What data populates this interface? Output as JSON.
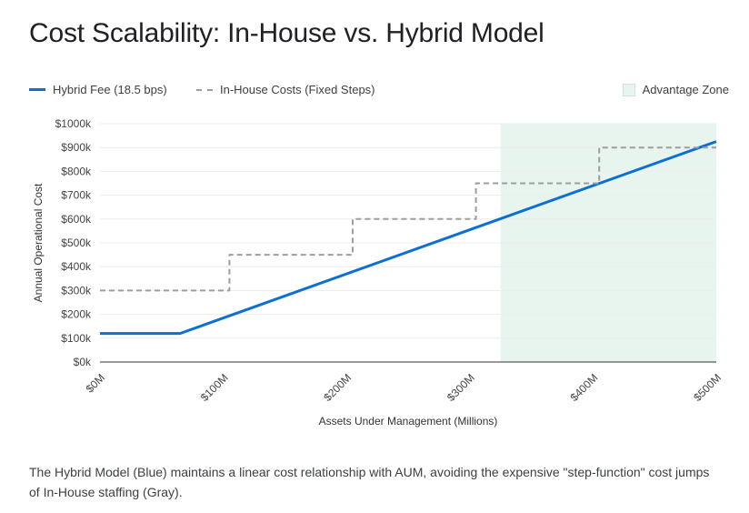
{
  "chart_data": {
    "type": "line",
    "title": "Cost Scalability: In-House vs. Hybrid Model",
    "xlabel": "Assets Under Management (Millions)",
    "ylabel": "Annual Operational Cost",
    "xlim": [
      0,
      500
    ],
    "ylim": [
      0,
      1000
    ],
    "x_ticks": [
      0,
      100,
      200,
      300,
      400,
      500
    ],
    "x_tick_labels": [
      "$0M",
      "$100M",
      "$200M",
      "$300M",
      "$400M",
      "$500M"
    ],
    "y_ticks": [
      0,
      100,
      200,
      300,
      400,
      500,
      600,
      700,
      800,
      900,
      1000
    ],
    "y_tick_labels": [
      "$0k",
      "$100k",
      "$200k",
      "$300k",
      "$400k",
      "$500k",
      "$600k",
      "$700k",
      "$800k",
      "$900k",
      "$1000k"
    ],
    "grid": true,
    "legend_position": "top",
    "series": [
      {
        "name": "Hybrid Fee (18.5 bps)",
        "style": "solid",
        "color": "#0b6fd4",
        "x": [
          0,
          65,
          500
        ],
        "y": [
          120,
          120,
          925
        ]
      },
      {
        "name": "In-House Costs (Fixed Steps)",
        "style": "dashed",
        "color": "#9e9e9e",
        "x": [
          0,
          105,
          105,
          205,
          205,
          305,
          305,
          405,
          405,
          500
        ],
        "y": [
          300,
          300,
          450,
          450,
          600,
          600,
          750,
          750,
          900,
          900
        ]
      }
    ],
    "regions": [
      {
        "name": "Advantage Zone",
        "x_start": 325,
        "x_end": 500,
        "color": "#e8f5ee"
      }
    ]
  },
  "caption": "The Hybrid Model (Blue) maintains a linear cost relationship with AUM, avoiding the expensive \"step-function\" cost jumps of In-House staffing (Gray)."
}
